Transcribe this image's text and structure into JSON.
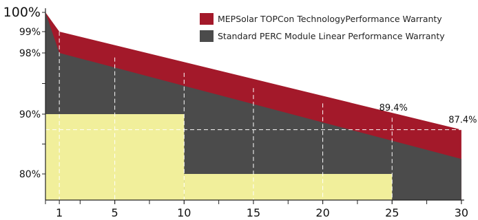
{
  "chart_data": {
    "type": "area",
    "title": "",
    "xlabel": "",
    "ylabel": "",
    "x_ticks": [
      1,
      5,
      10,
      15,
      20,
      25,
      30
    ],
    "y_tick_labels": [
      {
        "value": 100,
        "label": "100%"
      },
      {
        "value": 99,
        "label": "99%"
      },
      {
        "value": 98,
        "label": "98%"
      },
      {
        "value": 90,
        "label": "90%"
      },
      {
        "value": 80,
        "label": "80%"
      }
    ],
    "xlim": [
      0,
      30
    ],
    "y_axis_note": "y axis broken: 98%-100% segment expanded",
    "series": [
      {
        "name": "MEPSolar TOPCon TechnologyPerformance Warranty",
        "color": "#a3192a",
        "points": [
          [
            0,
            100
          ],
          [
            1,
            99
          ],
          [
            30,
            87.4
          ]
        ]
      },
      {
        "name": "Standard PERC Module Linear Performance Warranty",
        "color": "#4b4b4b",
        "points": [
          [
            0,
            100
          ],
          [
            1,
            98
          ],
          [
            30,
            82.5
          ]
        ]
      }
    ],
    "step_warranty": {
      "color": "#f1ef9b",
      "steps": [
        {
          "from": 0,
          "to": 10,
          "value": 90
        },
        {
          "from": 10,
          "to": 25,
          "value": 80
        }
      ]
    },
    "annotations": [
      {
        "x": 25,
        "y": 89.4,
        "text": "89.4%"
      },
      {
        "x": 30,
        "y": 87.4,
        "text": "87.4%"
      }
    ],
    "guide_lines": {
      "horizontal": 87.4,
      "vertical": [
        1,
        5,
        10,
        15,
        20,
        25
      ]
    },
    "legend": {
      "position": "top-right"
    }
  }
}
